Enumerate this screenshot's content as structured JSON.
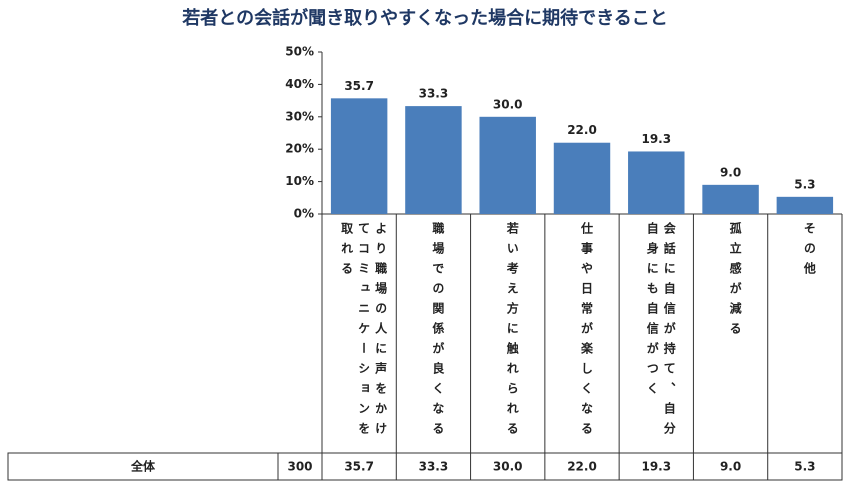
{
  "chart_data": {
    "type": "bar",
    "title": "若者との会話が聞き取りやすくなった場合に期待できること",
    "categories": [
      "より職場の人に声をかけてコミュニケーションを取れる",
      "職場での関係が良くなる",
      "若い考え方に触れられる",
      "仕事や日常が楽しくなる",
      "会話に自信が持て、自分自身にも自信がつく",
      "孤立感が減る",
      "その他"
    ],
    "values": [
      35.7,
      33.3,
      30.0,
      22.0,
      19.3,
      9.0,
      5.3
    ],
    "value_labels": [
      "35.7",
      "33.3",
      "30.0",
      "22.0",
      "19.3",
      "9.0",
      "5.3"
    ],
    "color": "#4a7ebb",
    "ylim": [
      0,
      50
    ],
    "yticks": [
      {
        "value": 0,
        "label": "0%"
      },
      {
        "value": 10,
        "label": "10%"
      },
      {
        "value": 20,
        "label": "20%"
      },
      {
        "value": 30,
        "label": "30%"
      },
      {
        "value": 40,
        "label": "40%"
      },
      {
        "value": 50,
        "label": "50%"
      }
    ],
    "grid": false
  },
  "table": {
    "row_label": "全体",
    "n": 300,
    "cells": [
      "35.7",
      "33.3",
      "30.0",
      "22.0",
      "19.3",
      "9.0",
      "5.3"
    ]
  }
}
